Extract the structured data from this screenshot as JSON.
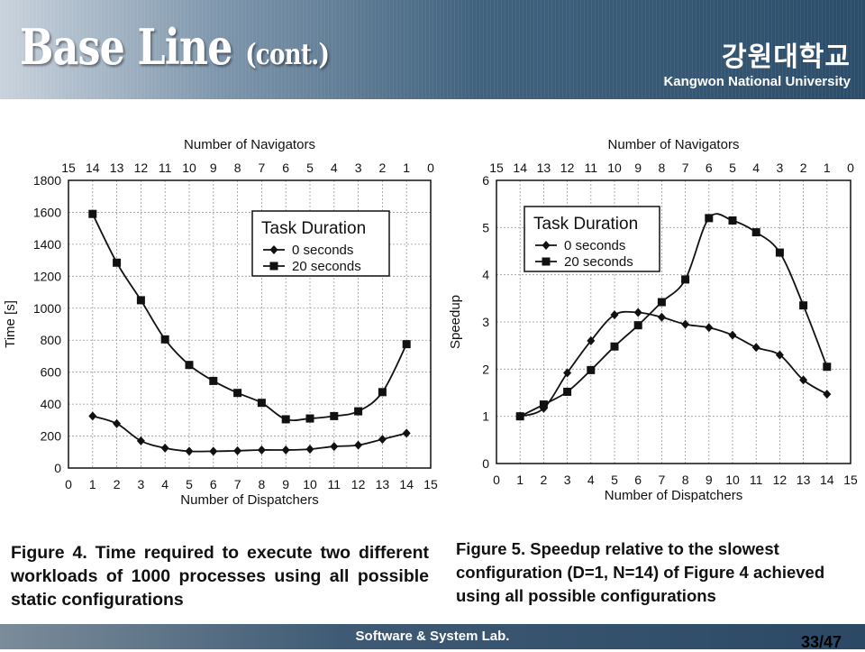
{
  "header": {
    "title": "Base Line",
    "title_suffix": "(cont.)",
    "university_korean": "강원대학교",
    "university_english": "Kangwon National University"
  },
  "captions": {
    "figure4": "Figure 4. Time required to execute two different workloads of 1000 processes using all possible static configurations",
    "figure5": "Figure 5. Speedup relative to the slowest configuration (D=1, N=14) of Figure 4 achieved using all possible configurations"
  },
  "footer": {
    "lab": "Software & System Lab.",
    "page": "33/47"
  },
  "chart_data": [
    {
      "type": "line",
      "ylabel": "Time [s]",
      "xlabel": "Number of Dispatchers",
      "top_axis_label": "Number of Navigators",
      "x_ticks": [
        0,
        1,
        2,
        3,
        4,
        5,
        6,
        7,
        8,
        9,
        10,
        11,
        12,
        13,
        14,
        15
      ],
      "top_ticks": [
        15,
        14,
        13,
        12,
        11,
        10,
        9,
        8,
        7,
        6,
        5,
        4,
        3,
        2,
        1,
        0
      ],
      "y_ticks": [
        0,
        200,
        400,
        600,
        800,
        1000,
        1200,
        1400,
        1600,
        1800
      ],
      "xlim": [
        0,
        15
      ],
      "ylim": [
        0,
        1800
      ],
      "grid": true,
      "legend": {
        "title": "Task Duration",
        "position": "top-center"
      },
      "series": [
        {
          "name": "0 seconds",
          "marker": "diamond",
          "x": [
            1,
            2,
            3,
            4,
            5,
            6,
            7,
            8,
            9,
            10,
            11,
            12,
            13,
            14
          ],
          "values": [
            325,
            278,
            170,
            125,
            105,
            105,
            108,
            113,
            113,
            118,
            135,
            143,
            180,
            218
          ]
        },
        {
          "name": "20 seconds",
          "marker": "square",
          "x": [
            1,
            2,
            3,
            4,
            5,
            6,
            7,
            8,
            9,
            10,
            11,
            12,
            13,
            14
          ],
          "values": [
            1590,
            1285,
            1050,
            805,
            645,
            545,
            470,
            408,
            305,
            310,
            325,
            355,
            475,
            775
          ]
        }
      ]
    },
    {
      "type": "line",
      "ylabel": "Speedup",
      "xlabel": "Number of Dispatchers",
      "top_axis_label": "Number of Navigators",
      "x_ticks": [
        0,
        1,
        2,
        3,
        4,
        5,
        6,
        7,
        8,
        9,
        10,
        11,
        12,
        13,
        14,
        15
      ],
      "top_ticks": [
        15,
        14,
        13,
        12,
        11,
        10,
        9,
        8,
        7,
        6,
        5,
        4,
        3,
        2,
        1,
        0
      ],
      "y_ticks": [
        0,
        1,
        2,
        3,
        4,
        5,
        6
      ],
      "xlim": [
        0,
        15
      ],
      "ylim": [
        0,
        6
      ],
      "grid": true,
      "legend": {
        "title": "Task Duration",
        "position": "top-left"
      },
      "series": [
        {
          "name": "0 seconds",
          "marker": "diamond",
          "x": [
            1,
            2,
            3,
            4,
            5,
            6,
            7,
            8,
            9,
            10,
            11,
            12,
            13,
            14
          ],
          "values": [
            1.0,
            1.17,
            1.92,
            2.6,
            3.15,
            3.2,
            3.1,
            2.95,
            2.88,
            2.72,
            2.46,
            2.3,
            1.77,
            1.47
          ]
        },
        {
          "name": "20 seconds",
          "marker": "square",
          "x": [
            1,
            2,
            3,
            4,
            5,
            6,
            7,
            8,
            9,
            10,
            11,
            12,
            13,
            14
          ],
          "values": [
            1.0,
            1.25,
            1.52,
            1.98,
            2.48,
            2.93,
            3.42,
            3.9,
            5.2,
            5.15,
            4.9,
            4.47,
            3.35,
            2.05
          ]
        }
      ]
    }
  ]
}
